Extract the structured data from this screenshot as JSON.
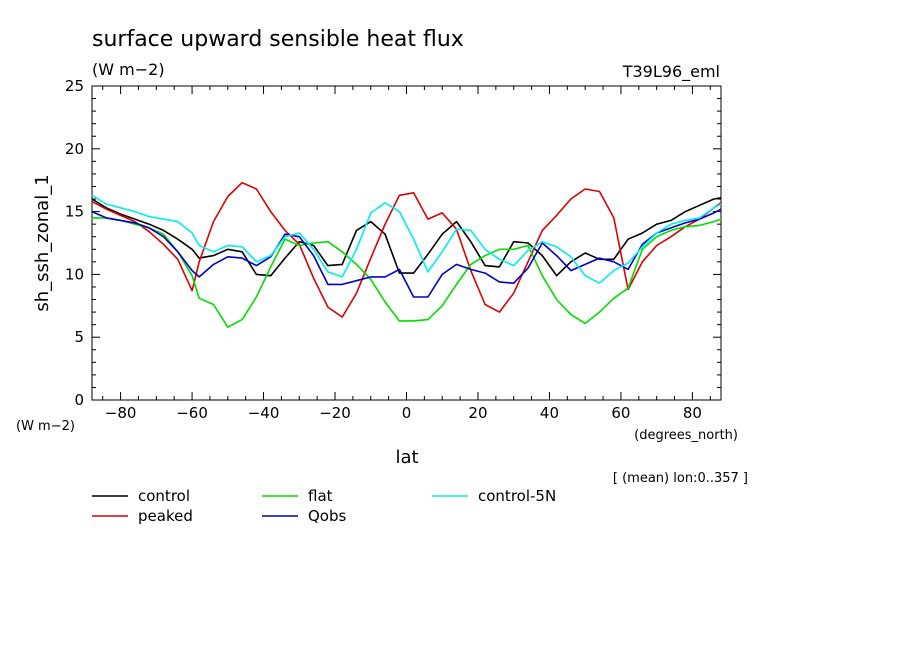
{
  "chart_data": {
    "type": "line",
    "title": "surface upward sensible heat flux",
    "units": "(W m−2)",
    "run_label": "T39L96_eml",
    "ylabel": "sh_ssh_zonal_1",
    "y_units": "(W m−2)",
    "xlabel": "lat",
    "x_units": "(degrees_north)",
    "footnote": "[ (mean) lon:0..357 ]",
    "xlim": [
      -88,
      88
    ],
    "ylim": [
      0,
      25
    ],
    "x_ticks": [
      -80,
      -60,
      -40,
      -20,
      0,
      20,
      40,
      60,
      80
    ],
    "x_tick_labels": [
      "−80",
      "−60",
      "−40",
      "−20",
      "0",
      "20",
      "40",
      "60",
      "80"
    ],
    "y_ticks": [
      0,
      5,
      10,
      15,
      20,
      25
    ],
    "y_tick_labels": [
      "0",
      "5",
      "10",
      "15",
      "20",
      "25"
    ],
    "grid": false,
    "legend_position": "bottom",
    "x": [
      -88,
      -84,
      -80,
      -76,
      -72,
      -68,
      -64,
      -60,
      -58,
      -54,
      -50,
      -46,
      -42,
      -38,
      -34,
      -30,
      -26,
      -22,
      -18,
      -14,
      -10,
      -6,
      -2,
      2,
      6,
      10,
      14,
      18,
      22,
      26,
      30,
      34,
      38,
      42,
      46,
      50,
      54,
      58,
      62,
      66,
      70,
      74,
      78,
      82,
      86,
      88
    ],
    "series": [
      {
        "name": "control",
        "color": "#000000",
        "values": [
          16.0,
          15.3,
          14.8,
          14.4,
          14.0,
          13.5,
          12.8,
          12.0,
          11.3,
          11.5,
          12.0,
          11.8,
          10.0,
          9.9,
          11.3,
          12.6,
          12.3,
          10.7,
          10.8,
          13.5,
          14.2,
          13.2,
          10.1,
          10.1,
          11.6,
          13.2,
          14.2,
          12.6,
          10.7,
          10.6,
          12.6,
          12.5,
          11.5,
          9.9,
          11.0,
          11.7,
          11.2,
          11.2,
          12.8,
          13.3,
          14.0,
          14.3,
          15.0,
          15.5,
          16.0,
          16.1
        ]
      },
      {
        "name": "peaked",
        "color": "#dd0000",
        "values": [
          15.8,
          15.2,
          14.7,
          14.2,
          13.4,
          12.4,
          11.2,
          8.7,
          11.0,
          14.2,
          16.2,
          17.3,
          16.8,
          15.0,
          13.5,
          12.4,
          9.7,
          7.4,
          6.6,
          8.5,
          11.3,
          14.0,
          16.3,
          16.5,
          14.4,
          14.9,
          13.6,
          10.3,
          7.6,
          7.0,
          8.5,
          11.0,
          13.5,
          14.7,
          16.0,
          16.8,
          16.6,
          14.5,
          8.8,
          11.0,
          12.3,
          13.0,
          13.8,
          14.4,
          15.3,
          15.7
        ]
      },
      {
        "name": "flat",
        "color": "#00dd00",
        "values": [
          14.5,
          14.5,
          14.3,
          14.0,
          13.7,
          13.2,
          11.8,
          9.9,
          8.1,
          7.6,
          5.8,
          6.4,
          8.2,
          10.6,
          12.8,
          12.3,
          12.5,
          12.6,
          11.8,
          10.8,
          9.6,
          7.8,
          6.3,
          6.3,
          6.4,
          7.5,
          9.2,
          10.8,
          11.5,
          12.0,
          12.0,
          12.3,
          9.9,
          8.0,
          6.8,
          6.1,
          7.0,
          8.1,
          8.9,
          12.0,
          13.0,
          13.5,
          13.8,
          13.9,
          14.2,
          14.4
        ]
      },
      {
        "name": "Qobs",
        "color": "#0000cc",
        "values": [
          15.0,
          14.5,
          14.3,
          14.1,
          13.7,
          13.0,
          11.8,
          10.3,
          9.8,
          10.8,
          11.4,
          11.3,
          10.7,
          11.4,
          13.2,
          13.0,
          11.5,
          9.2,
          9.2,
          9.5,
          9.8,
          9.8,
          10.4,
          8.2,
          8.2,
          10.0,
          10.8,
          10.4,
          10.1,
          9.4,
          9.3,
          10.5,
          12.5,
          11.5,
          10.3,
          10.8,
          11.3,
          11.0,
          10.4,
          12.4,
          13.3,
          13.7,
          14.1,
          14.4,
          14.9,
          15.2
        ]
      },
      {
        "name": "control-5N",
        "color": "#00eeee",
        "values": [
          16.3,
          15.6,
          15.3,
          15.0,
          14.6,
          14.4,
          14.2,
          13.3,
          12.3,
          11.8,
          12.3,
          12.2,
          11.0,
          11.5,
          13.0,
          13.3,
          12.0,
          10.2,
          9.8,
          12.0,
          14.9,
          15.7,
          15.0,
          12.8,
          10.2,
          11.8,
          13.6,
          13.5,
          12.0,
          11.2,
          10.7,
          11.9,
          12.6,
          12.2,
          11.4,
          9.9,
          9.3,
          10.3,
          10.9,
          12.2,
          13.3,
          14.0,
          14.3,
          14.5,
          15.3,
          15.6
        ]
      }
    ]
  }
}
